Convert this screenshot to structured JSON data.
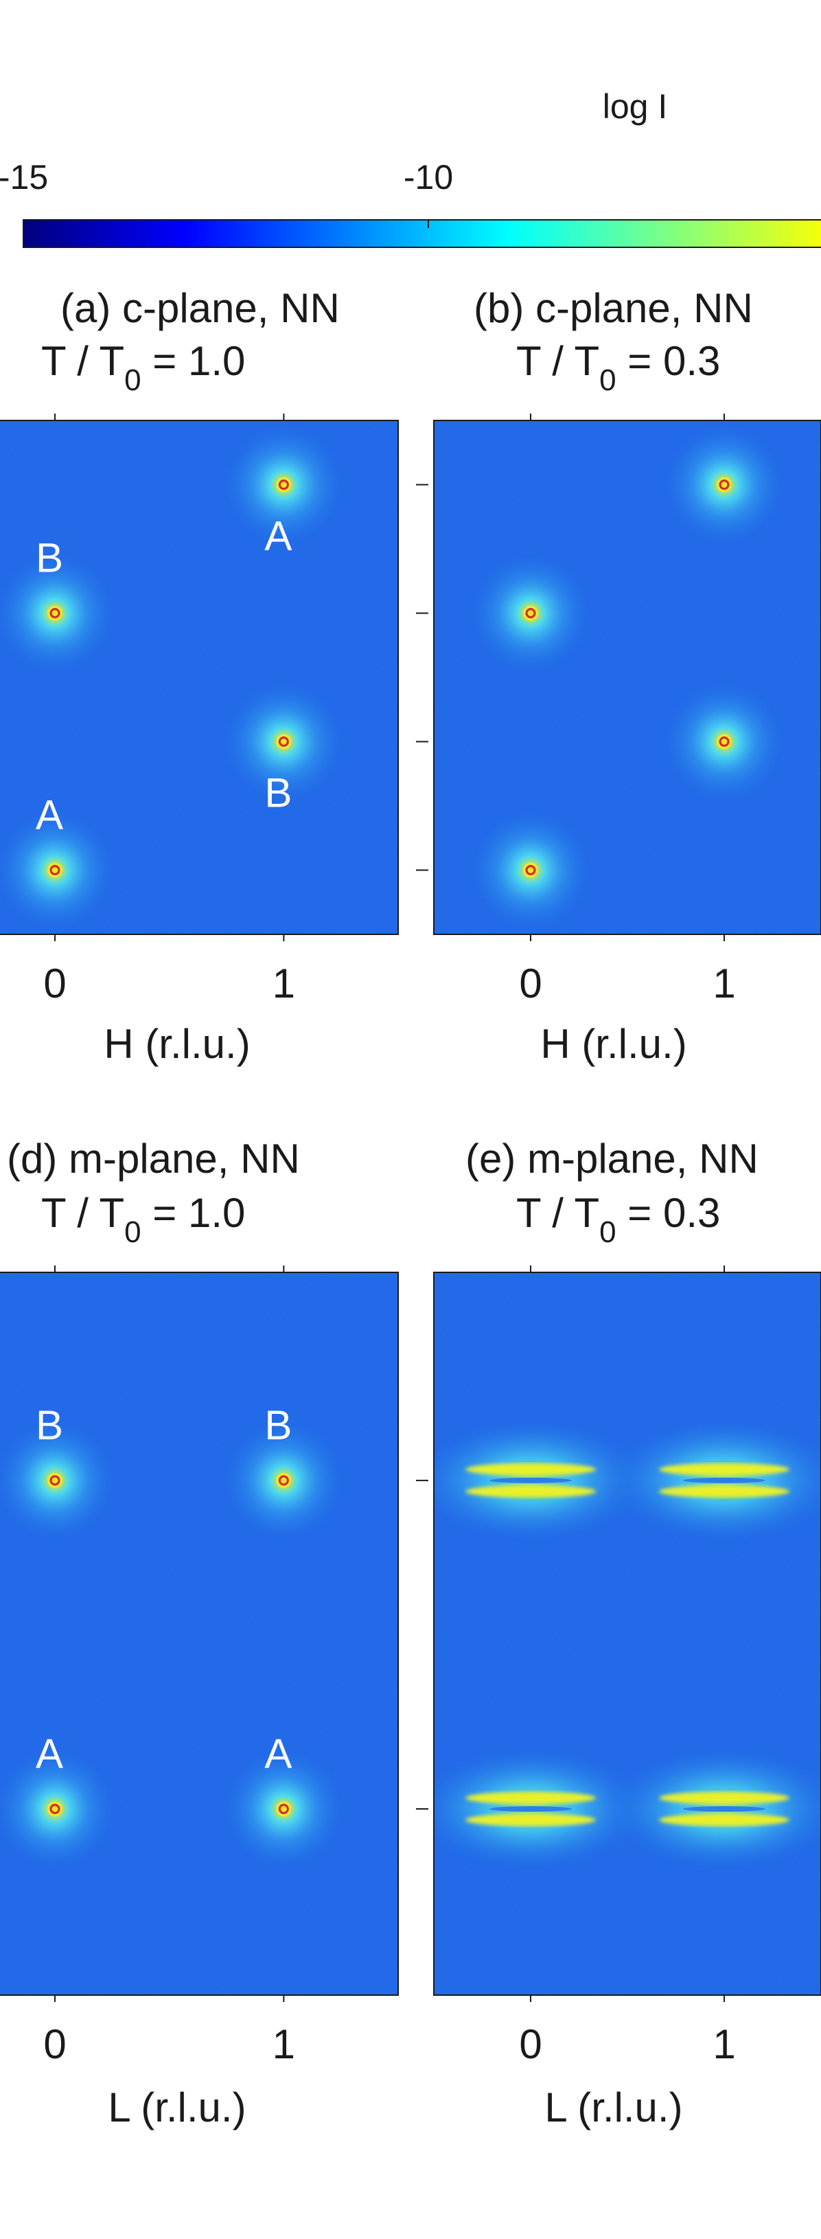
{
  "colorbar": {
    "label": "log I",
    "ticks": [
      {
        "value": -15,
        "label": "-15"
      },
      {
        "value": -10,
        "label": "-10"
      }
    ],
    "range": [
      -15,
      -5
    ],
    "colormap": [
      "#00007f",
      "#0000ff",
      "#0080ff",
      "#00ffff",
      "#80ff80",
      "#ffff00"
    ]
  },
  "colors": {
    "background": "#1a63e6",
    "halo": "#3fb6f2",
    "peak_core": "#f5e62a",
    "peak_center": "#d6262a",
    "streak": "#e9f02a",
    "peak_label": "#ffffff"
  },
  "chart_data": [
    {
      "type": "heatmap",
      "panel_id": "a",
      "title": "(a) c-plane, NN",
      "temp": {
        "prefix": "T / T",
        "sub": "0",
        "suffix": " = 1.0"
      },
      "xlabel": "H (r.l.u.)",
      "xticks": [
        {
          "value": 0,
          "label": "0"
        },
        {
          "value": 1,
          "label": "1"
        }
      ],
      "xlim": [
        -0.3,
        1.5
      ],
      "ylim": [
        -1.5,
        2.5
      ],
      "ytick_values": [
        -1,
        0,
        1,
        2
      ],
      "peaks": [
        {
          "x": 1,
          "y": 2,
          "label": "A",
          "label_pos": "below",
          "shape": "spot"
        },
        {
          "x": 0,
          "y": 1,
          "label": "B",
          "label_pos": "above",
          "shape": "spot"
        },
        {
          "x": 1,
          "y": 0,
          "label": "B",
          "label_pos": "below",
          "shape": "spot"
        },
        {
          "x": 0,
          "y": -1,
          "label": "A",
          "label_pos": "above",
          "shape": "spot"
        }
      ]
    },
    {
      "type": "heatmap",
      "panel_id": "b",
      "title": "(b) c-plane, NN",
      "temp": {
        "prefix": "T / T",
        "sub": "0",
        "suffix": " = 0.3"
      },
      "xlabel": "H (r.l.u.)",
      "xticks": [
        {
          "value": 0,
          "label": "0"
        },
        {
          "value": 1,
          "label": "1"
        }
      ],
      "xlim": [
        -0.5,
        1.5
      ],
      "ylim": [
        -1.5,
        2.5
      ],
      "ytick_values": [
        -1,
        0,
        1,
        2
      ],
      "peaks": [
        {
          "x": 1,
          "y": 2,
          "shape": "spot"
        },
        {
          "x": 0,
          "y": 1,
          "shape": "spot"
        },
        {
          "x": 1,
          "y": 0,
          "shape": "spot"
        },
        {
          "x": 0,
          "y": -1,
          "shape": "spot"
        }
      ]
    },
    {
      "type": "heatmap",
      "panel_id": "d",
      "title": "(d) m-plane, NN",
      "temp": {
        "prefix": "T / T",
        "sub": "0",
        "suffix": " = 1.0"
      },
      "xlabel": "L (r.l.u.)",
      "xticks": [
        {
          "value": 0,
          "label": "0"
        },
        {
          "value": 1,
          "label": "1"
        }
      ],
      "xlim": [
        -0.3,
        1.5
      ],
      "ylim": [
        -0.85,
        2.45
      ],
      "ytick_values": [
        0,
        1.5
      ],
      "peaks": [
        {
          "x": 0,
          "y": 1.5,
          "label": "B",
          "label_pos": "above",
          "shape": "spot"
        },
        {
          "x": 1,
          "y": 1.5,
          "label": "B",
          "label_pos": "above",
          "shape": "spot"
        },
        {
          "x": 0,
          "y": 0,
          "label": "A",
          "label_pos": "above",
          "shape": "spot"
        },
        {
          "x": 1,
          "y": 0,
          "label": "A",
          "label_pos": "above",
          "shape": "spot"
        }
      ]
    },
    {
      "type": "heatmap",
      "panel_id": "e",
      "title": "(e) m-plane, NN",
      "temp": {
        "prefix": "T / T",
        "sub": "0",
        "suffix": " = 0.3"
      },
      "xlabel": "L (r.l.u.)",
      "xticks": [
        {
          "value": 0,
          "label": "0"
        },
        {
          "value": 1,
          "label": "1"
        }
      ],
      "xlim": [
        -0.5,
        1.5
      ],
      "ylim": [
        -0.85,
        2.45
      ],
      "ytick_values": [
        0,
        1.5
      ],
      "peaks": [
        {
          "x": 0,
          "y": 1.5,
          "shape": "streak"
        },
        {
          "x": 1,
          "y": 1.5,
          "shape": "streak"
        },
        {
          "x": 0,
          "y": 0,
          "shape": "streak"
        },
        {
          "x": 1,
          "y": 0,
          "shape": "streak"
        }
      ]
    }
  ]
}
